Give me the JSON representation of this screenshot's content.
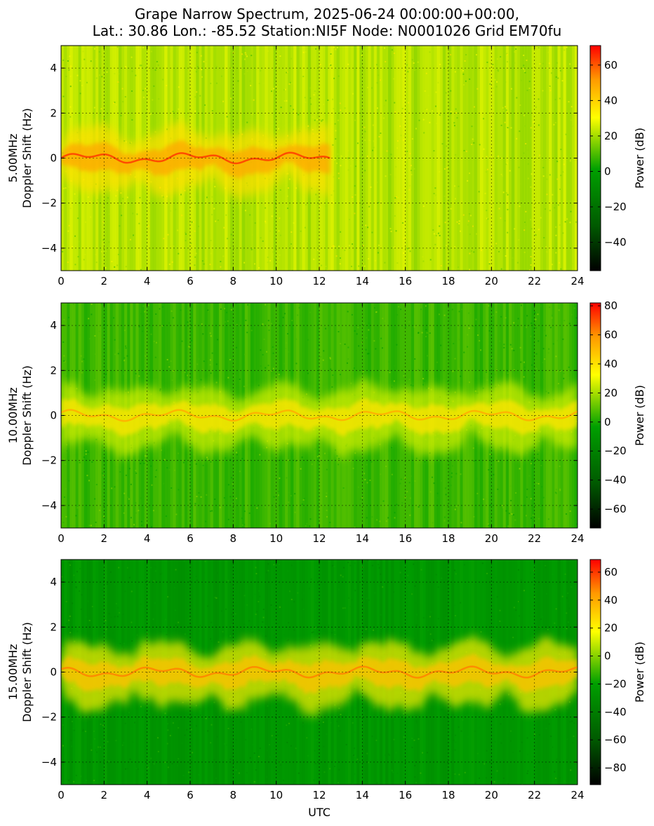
{
  "title": {
    "line1": "Grape Narrow Spectrum, 2025-06-24 00:00:00+00:00,",
    "line2": "Lat.: 30.86 Lon.: -85.52 Station:NI5F Node: N0001026 Grid EM70fu"
  },
  "chart_data": [
    {
      "type": "heatmap",
      "frequency_label": "5.00MHz",
      "ylabel": "Doppler Shift (Hz)",
      "xlabel": "",
      "xlim": [
        0,
        24
      ],
      "ylim": [
        -5,
        5
      ],
      "x_ticks": [
        0,
        2,
        4,
        6,
        8,
        10,
        12,
        14,
        16,
        18,
        20,
        22,
        24
      ],
      "y_ticks": [
        -4,
        -2,
        0,
        2,
        4
      ],
      "grid": true,
      "colorbar": {
        "label": "Power (dB)",
        "range": [
          -56,
          71
        ],
        "ticks": [
          -40,
          -20,
          0,
          20,
          40,
          60
        ]
      },
      "colormap": [
        "#000000",
        "#006400",
        "#00aa00",
        "#ffff00",
        "#ff8c00",
        "#ff0000"
      ],
      "trace_hours": [
        0,
        12.5
      ],
      "background_power_db": 22,
      "trace_power_db": 55
    },
    {
      "type": "heatmap",
      "frequency_label": "10.00MHz",
      "ylabel": "Doppler Shift (Hz)",
      "xlabel": "",
      "xlim": [
        0,
        24
      ],
      "ylim": [
        -5,
        5
      ],
      "x_ticks": [
        0,
        2,
        4,
        6,
        8,
        10,
        12,
        14,
        16,
        18,
        20,
        22,
        24
      ],
      "y_ticks": [
        -4,
        -2,
        0,
        2,
        4
      ],
      "grid": true,
      "colorbar": {
        "label": "Power (dB)",
        "range": [
          -73,
          82
        ],
        "ticks": [
          -60,
          -40,
          -20,
          0,
          20,
          40,
          60,
          80
        ]
      },
      "colormap": [
        "#000000",
        "#006400",
        "#00aa00",
        "#ffff00",
        "#ff8c00",
        "#ff0000"
      ],
      "trace_hours": [
        0,
        24
      ],
      "background_power_db": 5,
      "trace_power_db": 45
    },
    {
      "type": "heatmap",
      "frequency_label": "15.00MHz",
      "ylabel": "Doppler Shift (Hz)",
      "xlabel": "UTC",
      "xlim": [
        0,
        24
      ],
      "ylim": [
        -5,
        5
      ],
      "x_ticks": [
        0,
        2,
        4,
        6,
        8,
        10,
        12,
        14,
        16,
        18,
        20,
        22,
        24
      ],
      "y_ticks": [
        -4,
        -2,
        0,
        2,
        4
      ],
      "grid": true,
      "colorbar": {
        "label": "Power (dB)",
        "range": [
          -92,
          69
        ],
        "ticks": [
          -80,
          -60,
          -40,
          -20,
          0,
          20,
          40,
          60
        ]
      },
      "colormap": [
        "#000000",
        "#006400",
        "#00aa00",
        "#ffff00",
        "#ff8c00",
        "#ff0000"
      ],
      "trace_hours": [
        0,
        24
      ],
      "background_power_db": -25,
      "trace_power_db": 40
    }
  ]
}
